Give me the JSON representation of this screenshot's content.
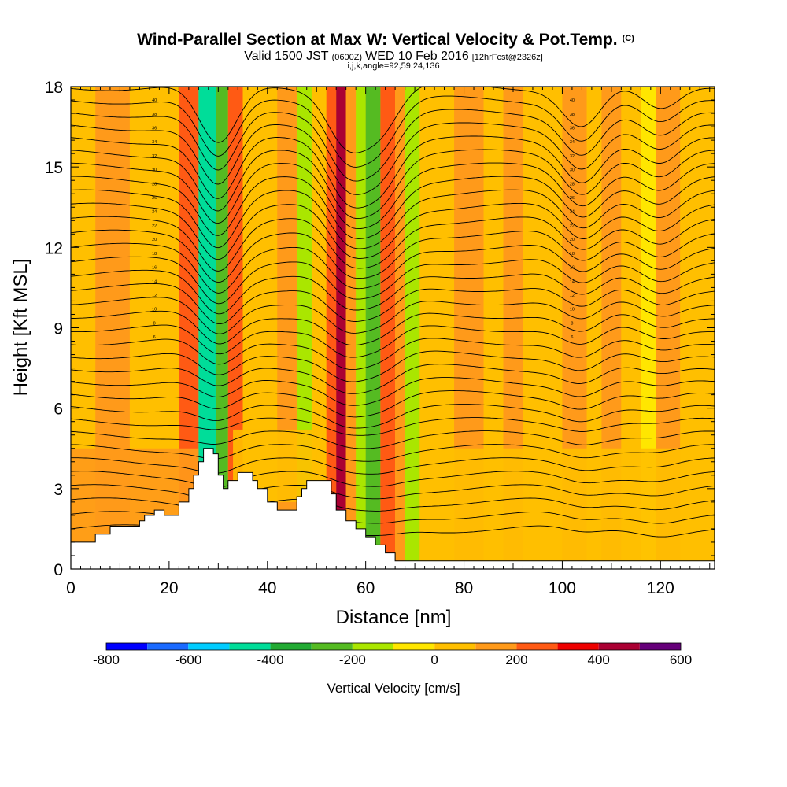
{
  "titles": {
    "main": "Wind-Parallel Section at Max W: Vertical Velocity & Pot.Temp.",
    "main_suffix": "(C)",
    "valid_prefix": "Valid 1500 JST",
    "valid_small": "(0600Z)",
    "valid_date": "WED 10 Feb 2016",
    "forecast": "[12hrFcst@2326z]",
    "indices": "i,j,k,angle=92,59,24,136"
  },
  "chart_data": {
    "type": "heatmap",
    "xlabel": "Distance [nm]",
    "ylabel": "Height [Kft MSL]",
    "xlim": [
      0,
      131
    ],
    "ylim": [
      0,
      18
    ],
    "xticks": [
      "0",
      "20",
      "40",
      "60",
      "80",
      "100",
      "120"
    ],
    "yticks": [
      "0",
      "3",
      "6",
      "9",
      "12",
      "15",
      "18"
    ],
    "field": "Vertical Velocity",
    "contours": "Potential Temperature",
    "colorbar": {
      "label": "Vertical Velocity [cm/s]",
      "range": [
        -800,
        600
      ],
      "step": 100,
      "ticks": [
        "-800",
        "-600",
        "-400",
        "-200",
        "0",
        "200",
        "400",
        "600"
      ],
      "colors": [
        "#0000ff",
        "#1a6aff",
        "#00ccff",
        "#00dd99",
        "#22aa33",
        "#55bb22",
        "#aae600",
        "#ffe600",
        "#ffbf00",
        "#ff9a1a",
        "#ff5a14",
        "#ee0000",
        "#aa0033",
        "#66007a"
      ]
    },
    "terrain_kft": [
      [
        0,
        1.0
      ],
      [
        5,
        1.0
      ],
      [
        5,
        1.3
      ],
      [
        8,
        1.3
      ],
      [
        8,
        1.6
      ],
      [
        14,
        1.6
      ],
      [
        14,
        1.8
      ],
      [
        15,
        1.8
      ],
      [
        15,
        2.0
      ],
      [
        17,
        2.0
      ],
      [
        17,
        2.2
      ],
      [
        19,
        2.2
      ],
      [
        19,
        2.0
      ],
      [
        22,
        2.0
      ],
      [
        22,
        2.5
      ],
      [
        24,
        2.5
      ],
      [
        24,
        3.0
      ],
      [
        25,
        3.0
      ],
      [
        25,
        3.5
      ],
      [
        26,
        3.5
      ],
      [
        26,
        4.0
      ],
      [
        27,
        4.0
      ],
      [
        27,
        4.5
      ],
      [
        29,
        4.5
      ],
      [
        29,
        4.3
      ],
      [
        30,
        4.3
      ],
      [
        30,
        3.5
      ],
      [
        31,
        3.5
      ],
      [
        31,
        3.0
      ],
      [
        32,
        3.0
      ],
      [
        32,
        3.3
      ],
      [
        34,
        3.3
      ],
      [
        34,
        3.6
      ],
      [
        37,
        3.6
      ],
      [
        37,
        3.3
      ],
      [
        38,
        3.3
      ],
      [
        38,
        3.0
      ],
      [
        40,
        3.0
      ],
      [
        40,
        2.5
      ],
      [
        42,
        2.5
      ],
      [
        42,
        2.2
      ],
      [
        46,
        2.2
      ],
      [
        46,
        2.7
      ],
      [
        47,
        2.7
      ],
      [
        47,
        3.0
      ],
      [
        48,
        3.0
      ],
      [
        48,
        3.3
      ],
      [
        53,
        3.3
      ],
      [
        53,
        2.8
      ],
      [
        54,
        2.8
      ],
      [
        54,
        2.2
      ],
      [
        56,
        2.2
      ],
      [
        56,
        1.8
      ],
      [
        58,
        1.8
      ],
      [
        58,
        1.5
      ],
      [
        60,
        1.5
      ],
      [
        60,
        1.2
      ],
      [
        62,
        1.2
      ],
      [
        62,
        0.9
      ],
      [
        64,
        0.9
      ],
      [
        64,
        0.6
      ],
      [
        66,
        0.6
      ],
      [
        66,
        0.3
      ],
      [
        131,
        0.3
      ]
    ],
    "bands": [
      {
        "x": [
          0,
          5
        ],
        "w": 0,
        "top": 18
      },
      {
        "x": [
          5,
          12
        ],
        "w": 100,
        "top": 18
      },
      {
        "x": [
          12,
          22
        ],
        "w": 0,
        "top": 18
      },
      {
        "x": [
          22,
          26
        ],
        "w": 200,
        "top": 18
      },
      {
        "x": [
          26,
          29.5
        ],
        "w": -450,
        "top": 18
      },
      {
        "x": [
          29.5,
          32
        ],
        "w": -300,
        "top": 18
      },
      {
        "x": [
          32,
          35
        ],
        "w": 200,
        "top": 18
      },
      {
        "x": [
          35,
          42
        ],
        "w": 0,
        "top": 18
      },
      {
        "x": [
          42,
          46
        ],
        "w": 100,
        "top": 18
      },
      {
        "x": [
          46,
          49
        ],
        "w": -150,
        "top": 18
      },
      {
        "x": [
          49,
          52
        ],
        "w": 0,
        "top": 18
      },
      {
        "x": [
          52,
          54
        ],
        "w": 250,
        "top": 18
      },
      {
        "x": [
          54,
          56
        ],
        "w": 400,
        "top": 18
      },
      {
        "x": [
          56,
          58
        ],
        "w": 150,
        "top": 18
      },
      {
        "x": [
          58,
          60
        ],
        "w": -150,
        "top": 18
      },
      {
        "x": [
          60,
          63
        ],
        "w": -300,
        "top": 18
      },
      {
        "x": [
          63,
          66
        ],
        "w": 250,
        "top": 18
      },
      {
        "x": [
          66,
          68
        ],
        "w": 100,
        "top": 18
      },
      {
        "x": [
          68,
          71
        ],
        "w": -150,
        "top": 18
      },
      {
        "x": [
          71,
          78
        ],
        "w": 0,
        "top": 18
      },
      {
        "x": [
          78,
          84
        ],
        "w": 100,
        "top": 18
      },
      {
        "x": [
          84,
          88
        ],
        "w": 0,
        "top": 18
      },
      {
        "x": [
          88,
          92
        ],
        "w": 100,
        "top": 18
      },
      {
        "x": [
          92,
          100
        ],
        "w": 0,
        "top": 18
      },
      {
        "x": [
          100,
          105
        ],
        "w": 150,
        "top": 18
      },
      {
        "x": [
          105,
          108
        ],
        "w": 0,
        "top": 18
      },
      {
        "x": [
          108,
          112
        ],
        "w": 100,
        "top": 18
      },
      {
        "x": [
          112,
          116
        ],
        "w": 0,
        "top": 18
      },
      {
        "x": [
          116,
          119
        ],
        "w": -100,
        "top": 18
      },
      {
        "x": [
          119,
          124
        ],
        "w": 100,
        "top": 18
      },
      {
        "x": [
          124,
          131
        ],
        "w": 0,
        "top": 18
      }
    ],
    "low_patches": [
      {
        "x": [
          0,
          26
        ],
        "y": [
          0,
          4.5
        ],
        "w": 100
      },
      {
        "x": [
          33,
          50
        ],
        "y": [
          2.5,
          5.2
        ],
        "w": 0
      },
      {
        "x": [
          72,
          131
        ],
        "y": [
          0,
          4.5
        ],
        "w": 0
      }
    ],
    "contour_labels": [
      "6",
      "8",
      "10",
      "12",
      "14",
      "16",
      "18",
      "20",
      "22",
      "24",
      "26",
      "28",
      "30",
      "32",
      "34",
      "36",
      "38",
      "40"
    ]
  }
}
